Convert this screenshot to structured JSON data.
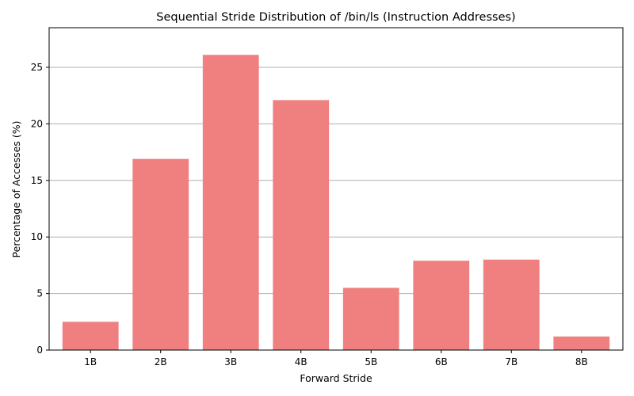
{
  "chart_data": {
    "type": "bar",
    "title": "Sequential Stride Distribution of /bin/ls (Instruction Addresses)",
    "xlabel": "Forward Stride",
    "ylabel": "Percentage of Accesses (%)",
    "categories": [
      "1B",
      "2B",
      "3B",
      "4B",
      "5B",
      "6B",
      "7B",
      "8B"
    ],
    "values": [
      2.5,
      16.9,
      26.1,
      22.1,
      5.5,
      7.9,
      8.0,
      1.2
    ],
    "ylim": [
      0,
      28.5
    ],
    "yticks": [
      0,
      5,
      10,
      15,
      20,
      25
    ],
    "grid": "y",
    "bar_color": "#f08080",
    "grid_color": "#b0b0b0"
  }
}
